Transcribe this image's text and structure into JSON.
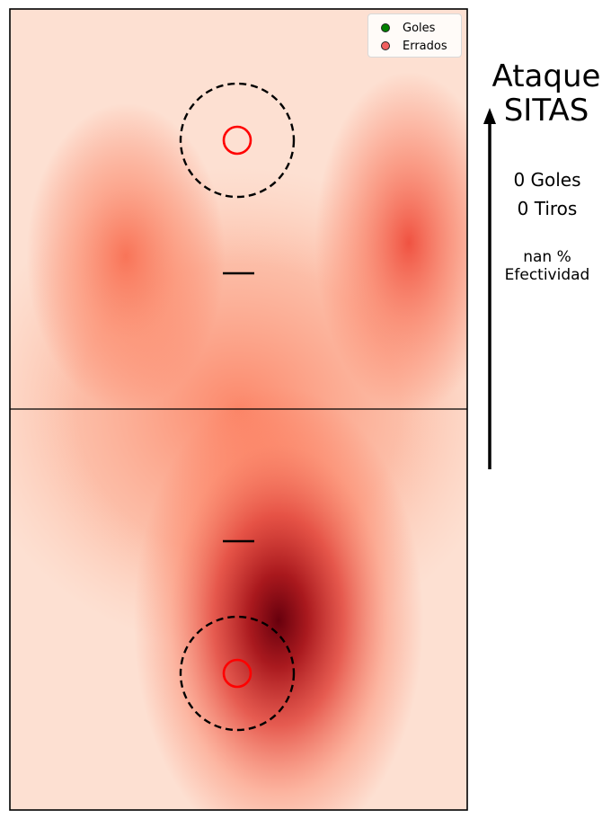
{
  "title": {
    "line1": "Ataque",
    "line2": "SITAS"
  },
  "stats": {
    "goals": "0 Goles",
    "shots": "0 Tiros",
    "effectiveness_value": "nan %",
    "effectiveness_label": "Efectividad"
  },
  "legend": {
    "items": [
      {
        "label": "Goles",
        "color": "#008000"
      },
      {
        "label": "Errados",
        "color": "#f06060"
      }
    ]
  },
  "colors": {
    "heatmap_low": "#fff5f0",
    "heatmap_mid": "#fb6a4a",
    "heatmap_high": "#67000d",
    "hoop": "#ff0000",
    "arrow": "#000000"
  },
  "chart_data": {
    "type": "heatmap",
    "colormap": "Reds",
    "grid": false,
    "legend_position": "top-right",
    "series": [
      {
        "name": "Goles",
        "points": []
      },
      {
        "name": "Errados",
        "points": []
      }
    ],
    "density_peaks": [
      {
        "court_half": "bottom",
        "location": "center-right, below free-throw line",
        "intensity": 1.0
      },
      {
        "court_half": "top",
        "location": "right wing",
        "intensity": 0.55
      },
      {
        "court_half": "top",
        "location": "left wing",
        "intensity": 0.45
      }
    ]
  }
}
